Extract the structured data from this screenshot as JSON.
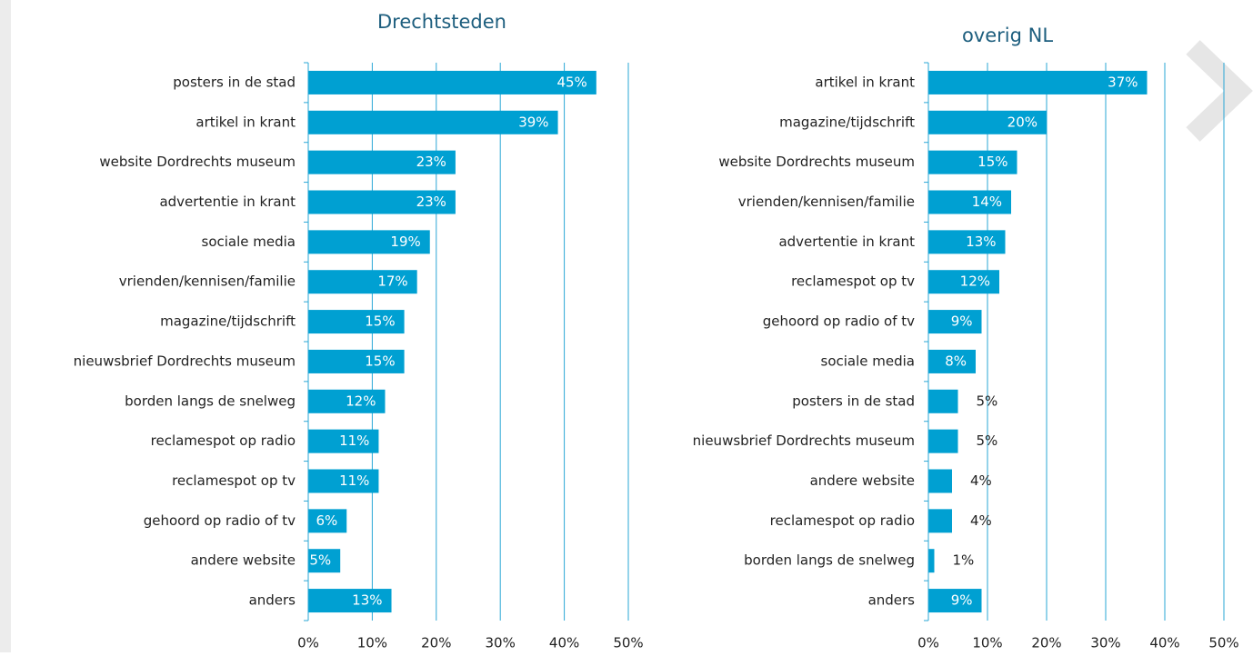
{
  "chart_data": [
    {
      "type": "bar",
      "orientation": "horizontal",
      "title": "Drechtsteden",
      "color": "#00a0d2",
      "grid": true,
      "categories": [
        "posters in de stad",
        "artikel in krant",
        "website Dordrechts museum",
        "advertentie in krant",
        "sociale media",
        "vrienden/kennisen/familie",
        "magazine/tijdschrift",
        "nieuwsbrief Dordrechts museum",
        "borden langs de snelweg",
        "reclamespot op radio",
        "reclamespot op tv",
        "gehoord op radio of tv",
        "andere website",
        "anders"
      ],
      "values": [
        45,
        39,
        23,
        23,
        19,
        17,
        15,
        15,
        12,
        11,
        11,
        6,
        5,
        13
      ],
      "value_labels": [
        "45%",
        "39%",
        "23%",
        "23%",
        "19%",
        "17%",
        "15%",
        "15%",
        "12%",
        "11%",
        "11%",
        "6%",
        "5%",
        "13%"
      ],
      "xlim": [
        0,
        50
      ],
      "xticks": [
        {
          "value": 0,
          "label": "0%"
        },
        {
          "value": 10,
          "label": "10%"
        },
        {
          "value": 20,
          "label": "20%"
        },
        {
          "value": 30,
          "label": "30%"
        },
        {
          "value": 40,
          "label": "40%"
        },
        {
          "value": 50,
          "label": "50%"
        }
      ]
    },
    {
      "type": "bar",
      "orientation": "horizontal",
      "title": "overig NL",
      "color": "#00a0d2",
      "grid": true,
      "categories": [
        "artikel in krant",
        "magazine/tijdschrift",
        "website Dordrechts museum",
        "vrienden/kennisen/familie",
        "advertentie in krant",
        "reclamespot op tv",
        "gehoord op radio of tv",
        "sociale media",
        "posters in de stad",
        "nieuwsbrief Dordrechts museum",
        "andere website",
        "reclamespot op radio",
        "borden langs de snelweg",
        "anders"
      ],
      "values": [
        37,
        20,
        15,
        14,
        13,
        12,
        9,
        8,
        5,
        5,
        4,
        4,
        1,
        9
      ],
      "value_labels": [
        "37%",
        "20%",
        "15%",
        "14%",
        "13%",
        "12%",
        "9%",
        "8%",
        "5%",
        "5%",
        "4%",
        "4%",
        "1%",
        "9%"
      ],
      "xlim": [
        0,
        50
      ],
      "xticks": [
        {
          "value": 0,
          "label": "0%"
        },
        {
          "value": 10,
          "label": "10%"
        },
        {
          "value": 20,
          "label": "20%"
        },
        {
          "value": 30,
          "label": "30%"
        },
        {
          "value": 40,
          "label": "40%"
        },
        {
          "value": 50,
          "label": "50%"
        }
      ]
    }
  ]
}
